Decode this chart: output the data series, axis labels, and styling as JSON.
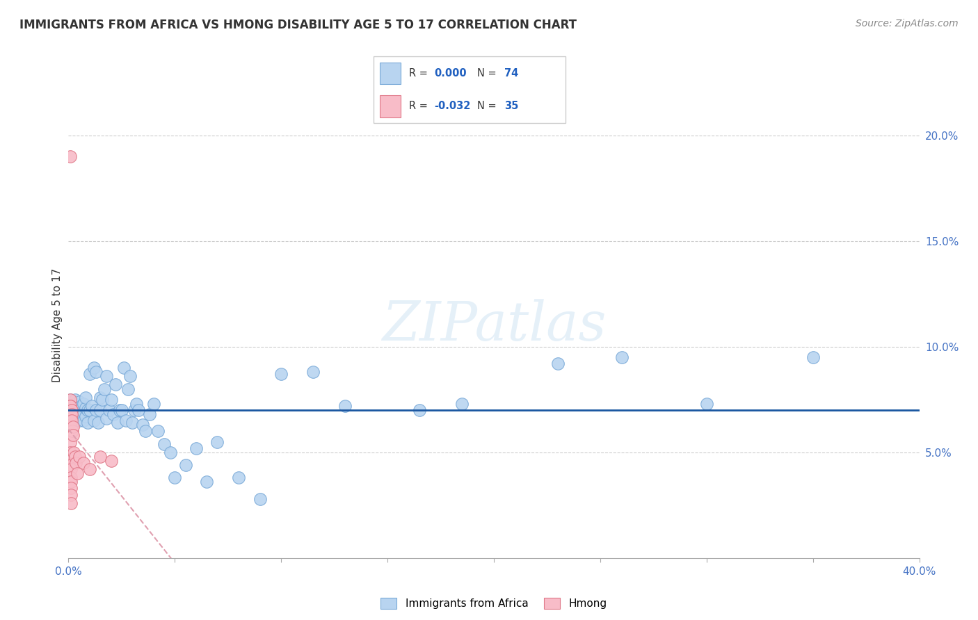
{
  "title": "IMMIGRANTS FROM AFRICA VS HMONG DISABILITY AGE 5 TO 17 CORRELATION CHART",
  "source_text": "Source: ZipAtlas.com",
  "ylabel": "Disability Age 5 to 17",
  "xlim": [
    0.0,
    0.4
  ],
  "ylim": [
    0.0,
    0.22
  ],
  "xticks": [
    0.0,
    0.05,
    0.1,
    0.15,
    0.2,
    0.25,
    0.3,
    0.35,
    0.4
  ],
  "yticks_right": [
    0.05,
    0.1,
    0.15,
    0.2
  ],
  "ytick_labels_right": [
    "5.0%",
    "10.0%",
    "15.0%",
    "20.0%"
  ],
  "xtick_labels": [
    "0.0%",
    "",
    "",
    "",
    "",
    "",
    "",
    "",
    "40.0%"
  ],
  "grid_color": "#cccccc",
  "background_color": "#ffffff",
  "africa_color": "#b8d4f0",
  "africa_edge_color": "#7aaad8",
  "hmong_color": "#f8bcc8",
  "hmong_edge_color": "#e07888",
  "africa_r": "0.000",
  "africa_n": "74",
  "hmong_r": "-0.032",
  "hmong_n": "35",
  "africa_trend_color": "#1a56a0",
  "hmong_trend_color": "#e0a0b0",
  "africa_x": [
    0.001,
    0.001,
    0.002,
    0.002,
    0.003,
    0.003,
    0.003,
    0.004,
    0.004,
    0.005,
    0.005,
    0.005,
    0.006,
    0.006,
    0.007,
    0.007,
    0.007,
    0.008,
    0.008,
    0.008,
    0.009,
    0.009,
    0.01,
    0.01,
    0.011,
    0.012,
    0.012,
    0.013,
    0.013,
    0.014,
    0.015,
    0.015,
    0.016,
    0.017,
    0.018,
    0.018,
    0.019,
    0.02,
    0.021,
    0.022,
    0.023,
    0.024,
    0.025,
    0.026,
    0.027,
    0.028,
    0.029,
    0.03,
    0.031,
    0.032,
    0.033,
    0.035,
    0.036,
    0.038,
    0.04,
    0.042,
    0.045,
    0.048,
    0.05,
    0.055,
    0.06,
    0.065,
    0.07,
    0.08,
    0.09,
    0.1,
    0.115,
    0.13,
    0.165,
    0.185,
    0.23,
    0.26,
    0.3,
    0.35
  ],
  "africa_y": [
    0.07,
    0.075,
    0.068,
    0.073,
    0.069,
    0.072,
    0.075,
    0.068,
    0.071,
    0.065,
    0.072,
    0.074,
    0.068,
    0.072,
    0.065,
    0.069,
    0.073,
    0.067,
    0.071,
    0.076,
    0.064,
    0.07,
    0.07,
    0.087,
    0.072,
    0.065,
    0.09,
    0.07,
    0.088,
    0.064,
    0.07,
    0.076,
    0.075,
    0.08,
    0.066,
    0.086,
    0.07,
    0.075,
    0.068,
    0.082,
    0.064,
    0.07,
    0.07,
    0.09,
    0.065,
    0.08,
    0.086,
    0.064,
    0.07,
    0.073,
    0.07,
    0.063,
    0.06,
    0.068,
    0.073,
    0.06,
    0.054,
    0.05,
    0.038,
    0.044,
    0.052,
    0.036,
    0.055,
    0.038,
    0.028,
    0.087,
    0.088,
    0.072,
    0.07,
    0.073,
    0.092,
    0.095,
    0.073,
    0.095
  ],
  "hmong_x": [
    0.0008,
    0.0008,
    0.0009,
    0.0009,
    0.0009,
    0.001,
    0.001,
    0.001,
    0.001,
    0.001,
    0.001,
    0.001,
    0.001,
    0.0011,
    0.0011,
    0.0012,
    0.0012,
    0.0012,
    0.0013,
    0.0013,
    0.0015,
    0.0015,
    0.0016,
    0.0018,
    0.002,
    0.0022,
    0.0025,
    0.003,
    0.0035,
    0.004,
    0.005,
    0.007,
    0.01,
    0.015,
    0.02
  ],
  "hmong_y": [
    0.19,
    0.075,
    0.072,
    0.068,
    0.065,
    0.072,
    0.069,
    0.068,
    0.066,
    0.064,
    0.055,
    0.05,
    0.047,
    0.044,
    0.042,
    0.038,
    0.036,
    0.033,
    0.03,
    0.026,
    0.07,
    0.068,
    0.065,
    0.06,
    0.062,
    0.058,
    0.05,
    0.048,
    0.045,
    0.04,
    0.048,
    0.045,
    0.042,
    0.048,
    0.046
  ]
}
